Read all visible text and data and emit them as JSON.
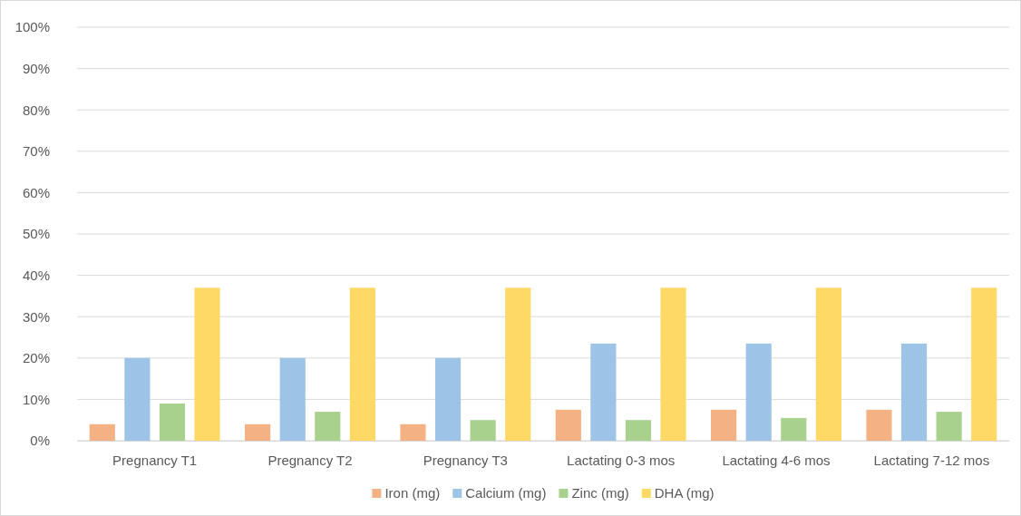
{
  "chart_data": {
    "type": "bar",
    "categories": [
      "Pregnancy T1",
      "Pregnancy T2",
      "Pregnancy T3",
      "Lactating 0-3 mos",
      "Lactating 4-6 mos",
      "Lactating 7-12 mos"
    ],
    "series": [
      {
        "name": "Iron (mg)",
        "color": "#f4b183",
        "values": [
          4,
          4,
          4,
          7.5,
          7.5,
          7.5
        ]
      },
      {
        "name": "Calcium (mg)",
        "color": "#9dc3e6",
        "values": [
          20,
          20,
          20,
          23.5,
          23.5,
          23.5
        ]
      },
      {
        "name": "Zinc (mg)",
        "color": "#a9d18e",
        "values": [
          9,
          7,
          5,
          5,
          5.5,
          7
        ]
      },
      {
        "name": "DHA (mg)",
        "color": "#ffd966",
        "values": [
          37,
          37,
          37,
          37,
          37,
          37
        ]
      }
    ],
    "ylim": [
      0,
      100
    ],
    "yticks": [
      {
        "value": 0,
        "label": "0%"
      },
      {
        "value": 10,
        "label": "10%"
      },
      {
        "value": 20,
        "label": "20%"
      },
      {
        "value": 30,
        "label": "30%"
      },
      {
        "value": 40,
        "label": "40%"
      },
      {
        "value": 50,
        "label": "50%"
      },
      {
        "value": 60,
        "label": "60%"
      },
      {
        "value": 70,
        "label": "70%"
      },
      {
        "value": 80,
        "label": "80%"
      },
      {
        "value": 90,
        "label": "90%"
      },
      {
        "value": 100,
        "label": "100%"
      }
    ],
    "grid": "y",
    "legend": "bottom"
  }
}
